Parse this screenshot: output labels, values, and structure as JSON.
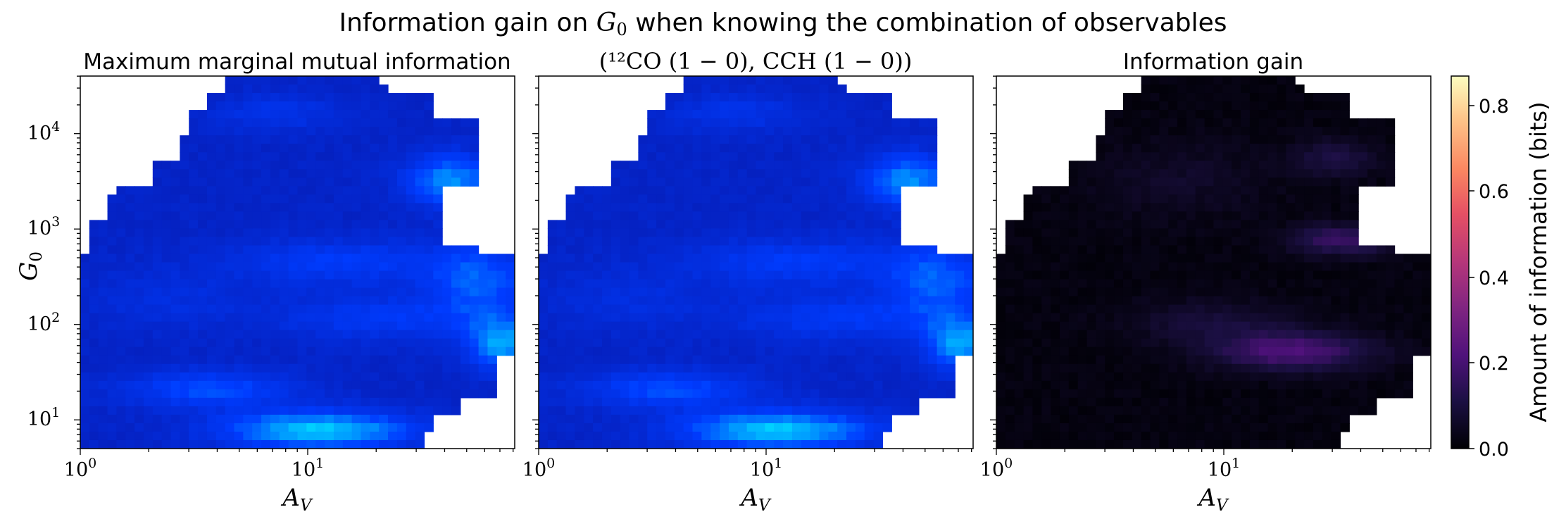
{
  "figure": {
    "title_text": "Information gain on ",
    "title_math": "G",
    "title_math_sub": "0",
    "title_rest": " when knowing the combination of observables"
  },
  "chart_data": [
    {
      "type": "heatmap",
      "title": "Maximum marginal mutual information",
      "xlabel": "A_V",
      "ylabel": "G_0",
      "xscale": "log",
      "yscale": "log",
      "xlim": [
        1,
        80
      ],
      "ylim": [
        5,
        35000
      ],
      "colormap": "winter-to-cyan (blue → cyan → green)",
      "x_ticks": [
        "10^0",
        "10^1"
      ],
      "y_ticks": [
        "10^1",
        "10^2",
        "10^3",
        "10^4"
      ]
    },
    {
      "type": "heatmap",
      "title": "(¹²CO (1 − 0), CCH (1 − 0))",
      "xlabel": "A_V",
      "xscale": "log",
      "yscale": "log",
      "xlim": [
        1,
        80
      ],
      "ylim": [
        5,
        35000
      ],
      "colormap": "winter-to-cyan (blue → cyan → green)",
      "x_ticks": [
        "10^0",
        "10^1"
      ]
    },
    {
      "type": "heatmap",
      "title": "Information gain",
      "xlabel": "A_V",
      "xscale": "log",
      "yscale": "log",
      "xlim": [
        1,
        80
      ],
      "ylim": [
        5,
        35000
      ],
      "colormap": "magma",
      "x_ticks": [
        "10^0",
        "10^1"
      ],
      "colorbar": {
        "label": "Amount of information (bits)",
        "range": [
          0.0,
          0.86
        ],
        "ticks": [
          "0.0",
          "0.2",
          "0.4",
          "0.6",
          "0.8"
        ]
      }
    }
  ],
  "labels": {
    "panel1_title": "Maximum marginal mutual information",
    "panel2_title": "(¹²CO (1 − 0), CCH (1 − 0))",
    "panel3_title": "Information gain",
    "xlabel_main": "A",
    "xlabel_sub": "V",
    "ylabel_main": "G",
    "ylabel_sub": "0",
    "tick_base": "10",
    "x_tick_exps": [
      "0",
      "1"
    ],
    "y_tick_exps": [
      "1",
      "2",
      "3",
      "4"
    ],
    "colorbar_label": "Amount of information (bits)",
    "colorbar_ticks": [
      "0.0",
      "0.2",
      "0.4",
      "0.6",
      "0.8"
    ]
  }
}
